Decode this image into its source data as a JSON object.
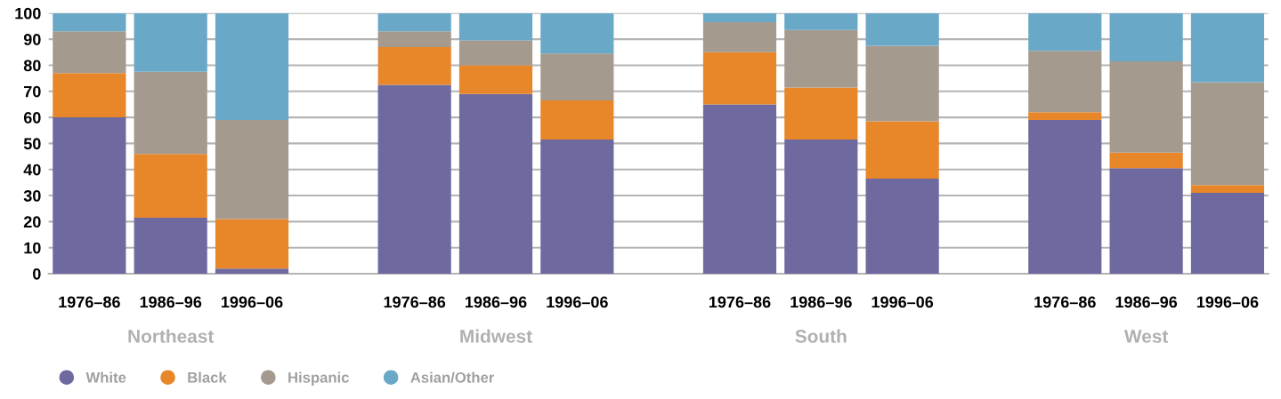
{
  "chart_data": {
    "type": "bar",
    "stacked": true,
    "categories": [
      "1976–86",
      "1986–96",
      "1996–06",
      null,
      "1976–86",
      "1986–96",
      "1996–06",
      null,
      "1976–86",
      "1986–96",
      "1996–06",
      null,
      "1976–86",
      "1986–96",
      "1996–06"
    ],
    "series": [
      {
        "name": "White",
        "color": "#6e6aa0",
        "values": [
          60,
          21.5,
          2,
          null,
          72.5,
          69,
          51.5,
          null,
          65,
          51.5,
          36.5,
          null,
          59,
          40.5,
          31
        ]
      },
      {
        "name": "Black",
        "color": "#e8862a",
        "values": [
          17,
          24.5,
          19,
          null,
          14.5,
          11,
          15,
          null,
          20,
          20,
          22,
          null,
          3,
          6,
          3
        ]
      },
      {
        "name": "Hispanic",
        "color": "#a59a8e",
        "values": [
          16,
          31.5,
          38,
          null,
          6,
          9.5,
          18,
          null,
          11.5,
          22,
          29,
          null,
          23.5,
          35,
          39.5
        ]
      },
      {
        "name": "Asian/Other",
        "color": "#6aa8c8",
        "values": [
          7,
          22.5,
          41,
          null,
          7,
          10.5,
          15.5,
          null,
          3.5,
          6.5,
          12.5,
          null,
          14.5,
          18.5,
          26.5
        ]
      }
    ],
    "annotations": [
      "Northeast",
      "Midwest",
      "South",
      "West"
    ],
    "ylim": [
      0,
      100
    ],
    "yticks": [
      0,
      10,
      20,
      30,
      40,
      50,
      60,
      70,
      80,
      90,
      100
    ],
    "grid": "y",
    "legend": "bottom left"
  }
}
